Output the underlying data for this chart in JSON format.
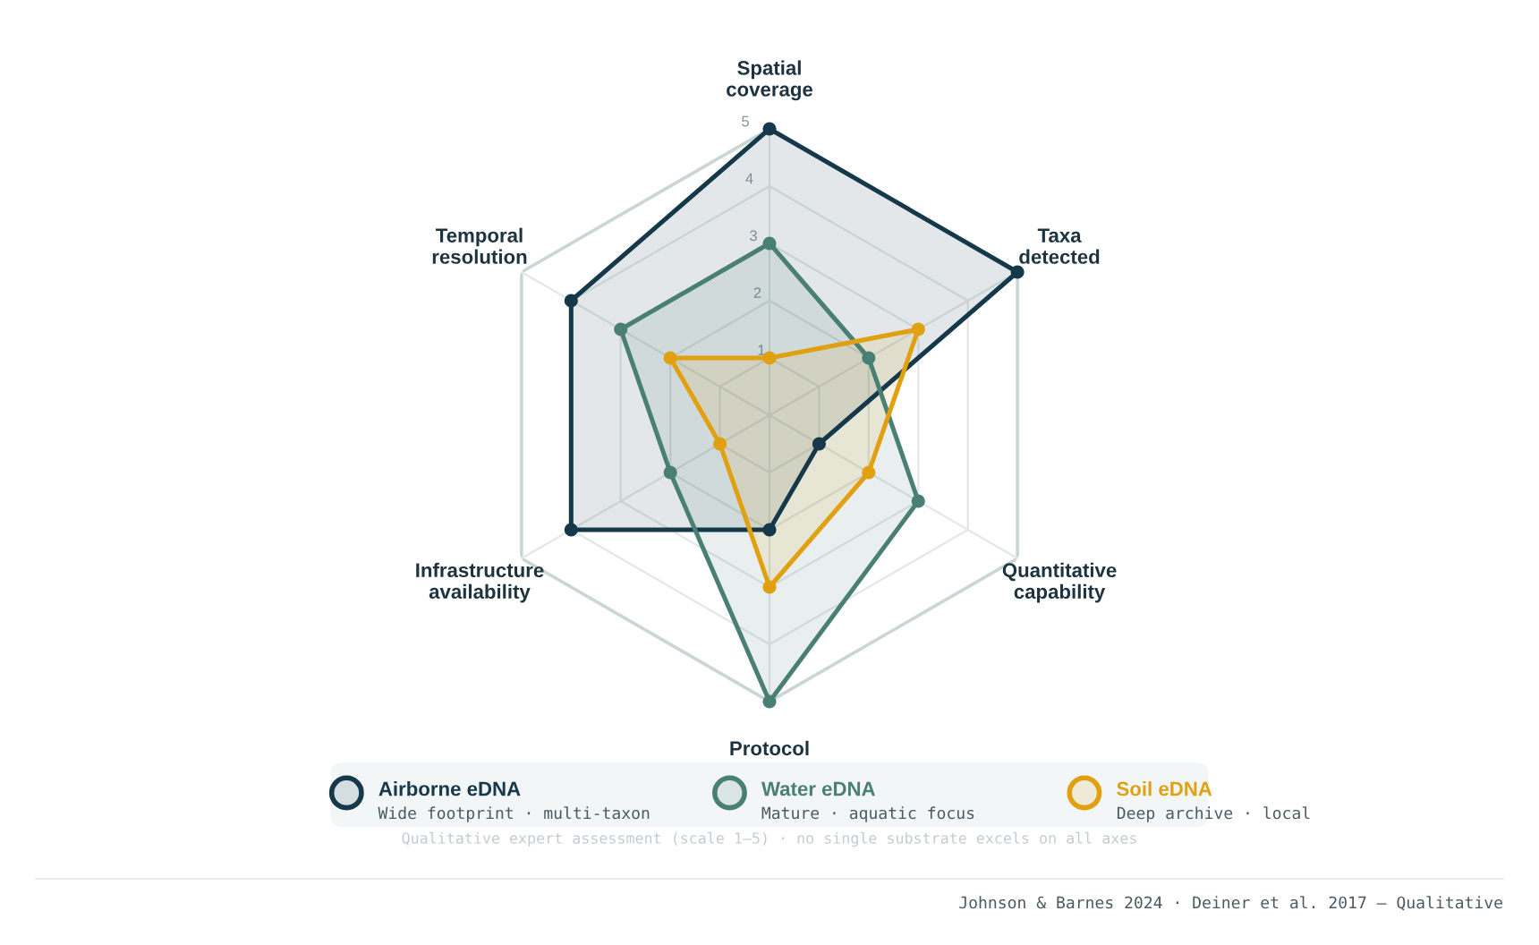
{
  "chart_data": {
    "type": "radar",
    "categories": [
      "Spatial\ncoverage",
      "Taxa\ndetected",
      "Quantitative\ncapability",
      "Protocol",
      "Infrastructure\navailability",
      "Temporal\nresolution"
    ],
    "series": [
      {
        "name": "Airborne eDNA",
        "color": "#15394a",
        "values": [
          5,
          5,
          1,
          2,
          4,
          4
        ]
      },
      {
        "name": "Water eDNA",
        "color": "#4a7f74",
        "values": [
          3,
          2,
          3,
          5,
          2,
          3
        ]
      },
      {
        "name": "Soil eDNA",
        "color": "#e0a010",
        "values": [
          1,
          3,
          2,
          3,
          1,
          2
        ]
      }
    ],
    "ylim": [
      0,
      5
    ],
    "yticks": [
      1,
      2,
      3,
      4,
      5
    ],
    "grid": true,
    "legend": "bottom",
    "marker": "circle",
    "annotations": [
      "Wide footprint · multi-taxon",
      "Mature · aquatic focus",
      "Deep archive · local",
      "Qualitative expert assessment (scale 1–5) · no single substrate excels on all axes",
      "Johnson & Barnes 2024 · Deiner et al. 2017 — Qualitative"
    ]
  }
}
